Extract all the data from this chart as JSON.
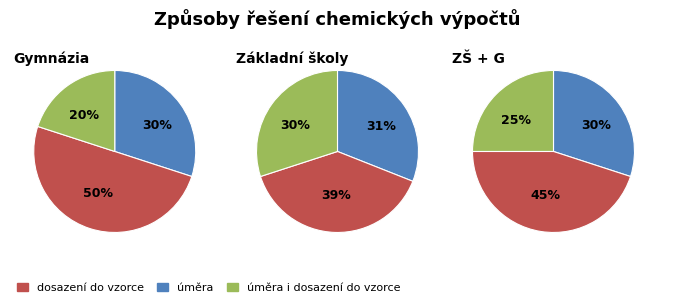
{
  "title": "Způsoby řešení chemických výpočtů",
  "charts": [
    {
      "subtitle": "Gymnázia",
      "values": [
        30,
        50,
        20
      ],
      "labels": [
        "30%",
        "50%",
        "20%"
      ],
      "colors": [
        "#4f81bd",
        "#c0504d",
        "#9bbb59"
      ]
    },
    {
      "subtitle": "Základní školy",
      "values": [
        31,
        39,
        30
      ],
      "labels": [
        "31%",
        "39%",
        "30%"
      ],
      "colors": [
        "#4f81bd",
        "#c0504d",
        "#9bbb59"
      ]
    },
    {
      "subtitle": "ZŠ + G",
      "values": [
        30,
        45,
        25
      ],
      "labels": [
        "30%",
        "45%",
        "25%"
      ],
      "colors": [
        "#4f81bd",
        "#c0504d",
        "#9bbb59"
      ]
    }
  ],
  "legend_colors": [
    "#c0504d",
    "#4f81bd",
    "#9bbb59"
  ],
  "legend_labels": [
    "dosazení do vzorce",
    "úměra",
    "úměra i dosazení do vzorce"
  ],
  "title_fontsize": 13,
  "subtitle_fontsize": 10,
  "label_fontsize": 9,
  "legend_fontsize": 8,
  "background_color": "#ffffff",
  "startangle": 90
}
